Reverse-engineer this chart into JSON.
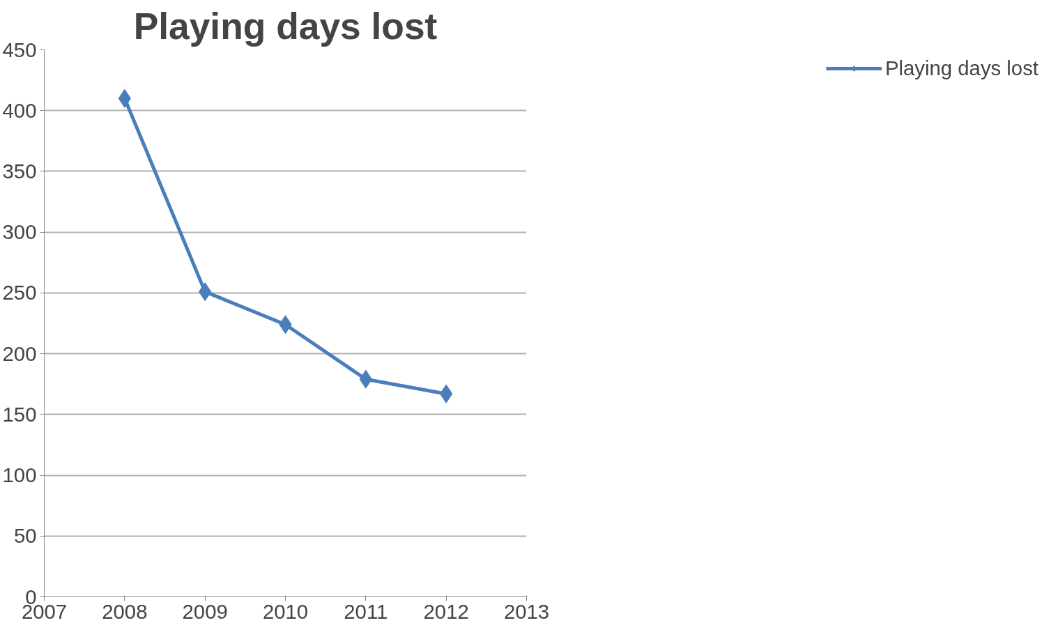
{
  "chart_data": {
    "type": "line",
    "title": "Playing days lost",
    "x": [
      2008,
      2009,
      2010,
      2011,
      2012
    ],
    "series": [
      {
        "name": "Playing days lost",
        "color": "#4a7ebb",
        "values": [
          410,
          251,
          224,
          179,
          167
        ]
      }
    ],
    "xlim": [
      2007,
      2013
    ],
    "xticks": [
      2007,
      2008,
      2009,
      2010,
      2011,
      2012,
      2013
    ],
    "ylim": [
      0,
      450
    ],
    "yticks": [
      0,
      50,
      100,
      150,
      200,
      250,
      300,
      350,
      400,
      450
    ],
    "grid": "y",
    "legend": "right",
    "marker": "diamond",
    "line_style": "solid"
  }
}
